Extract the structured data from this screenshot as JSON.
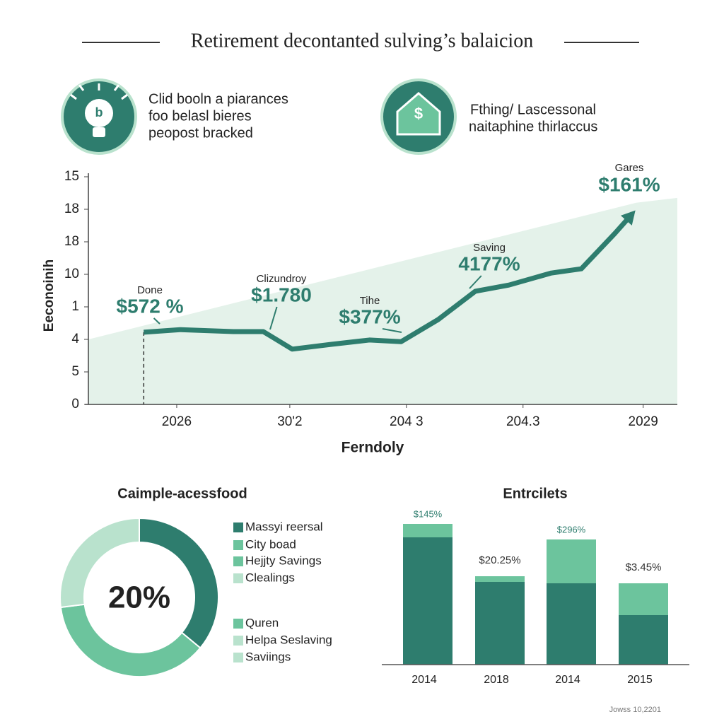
{
  "title": "Retirement decontanted sulving’s balaicion",
  "info": [
    {
      "icon": "lightbulb",
      "lines": [
        "Clid booln a piarances",
        "foo belasl bieres",
        "peopost bracked"
      ]
    },
    {
      "icon": "$",
      "lines": [
        "Fthing/ Lascessonal",
        "naitaphine thirlaccus"
      ]
    }
  ],
  "footer": "Jowss 10,2201",
  "chart_data": [
    {
      "type": "line",
      "x_label": "Ferndoly",
      "y_label": "Eeconoinih",
      "xlim": [
        0,
        100
      ],
      "xticks": [
        {
          "value": 15,
          "label": "2026"
        },
        {
          "value": 34.2,
          "label": "30'2"
        },
        {
          "value": 54,
          "label": "204 3"
        },
        {
          "value": 73.8,
          "label": "204.3"
        },
        {
          "value": 94.2,
          "label": "2029"
        }
      ],
      "ylim": [
        0,
        7
      ],
      "yticks": [
        0,
        {
          "value": 1,
          "label": "5"
        },
        {
          "value": 2,
          "label": "4"
        },
        {
          "value": 3,
          "label": "1"
        },
        {
          "value": 4,
          "label": "10"
        },
        {
          "value": 5,
          "label": "18"
        },
        {
          "value": 6,
          "label": "18"
        },
        {
          "value": 7,
          "label": "15"
        }
      ],
      "x": [
        9.4,
        15.6,
        24.6,
        29.7,
        34.6,
        41.4,
        47.7,
        53.1,
        59.4,
        65.7,
        71.4,
        78.6,
        83.7,
        89.4,
        92.4
      ],
      "values": [
        2.22,
        2.3,
        2.24,
        2.24,
        1.7,
        1.85,
        1.98,
        1.93,
        2.61,
        3.48,
        3.67,
        4.04,
        4.17,
        5.26,
        5.87
      ],
      "color": "#2e7d6e",
      "area": {
        "x": [
          0,
          93,
          100
        ],
        "values": [
          2,
          6.2,
          6.35
        ],
        "color": "#e4f2ea"
      },
      "annotations": [
        {
          "label": "Done",
          "text": "$572 %"
        },
        {
          "label": "Clizundroy",
          "text": "$1.780"
        },
        {
          "label": "Tihe",
          "text": "$377%"
        },
        {
          "label": "Saving",
          "text": "4177%"
        },
        {
          "label": "Gares",
          "text": "$161%"
        }
      ]
    },
    {
      "type": "donut",
      "title": "Caimple-acessfood",
      "center_text": "20%",
      "values": [
        36,
        37,
        27
      ],
      "colors": [
        "#2e7d6e",
        "#6cc49d",
        "#b9e2cd"
      ],
      "legend": [
        {
          "name": "Massyi reersal",
          "color": "#2e7d6e"
        },
        {
          "name": "City boad",
          "color": "#6cc49d"
        },
        {
          "name": "Hejjty Savings",
          "color": "#6cc49d"
        },
        {
          "name": "Clealings",
          "color": "#b9e2cd"
        },
        {
          "name": "Quren",
          "color": "#6cc49d"
        },
        {
          "name": "Helpa Seslaving",
          "color": "#b9e2cd"
        },
        {
          "name": "Saviings",
          "color": "#b9e2cd"
        }
      ]
    },
    {
      "type": "stacked_bar",
      "title": "Entrcilets",
      "categories": [
        "2014",
        "2018",
        "2014",
        "2015"
      ],
      "ylim": [
        0,
        200
      ],
      "series": [
        {
          "color": "#2e7d6e",
          "values": [
            180,
            117,
            115,
            70
          ]
        },
        {
          "color": "#6cc49d",
          "values": [
            19,
            8,
            62,
            45
          ]
        }
      ],
      "annotations": [
        "$145%",
        "$20.25%",
        "$296%",
        "$3.45%"
      ]
    }
  ]
}
